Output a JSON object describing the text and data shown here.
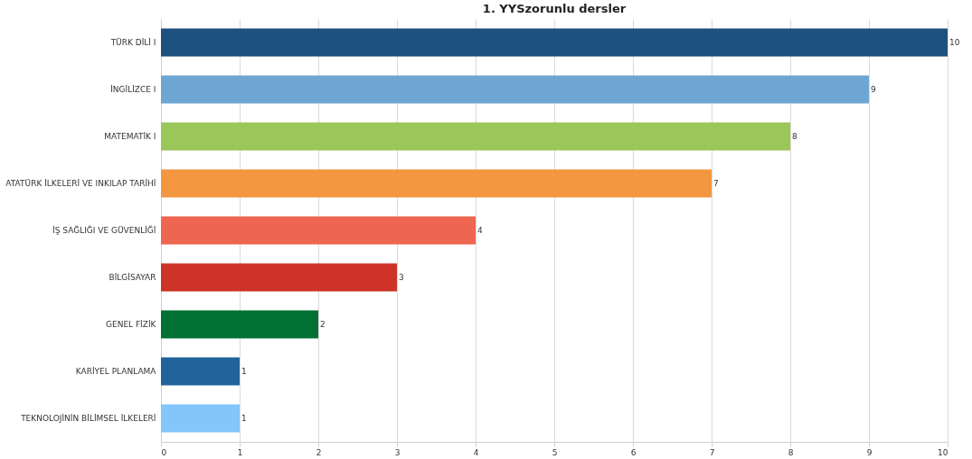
{
  "chart_data": {
    "type": "bar",
    "orientation": "horizontal",
    "title": "1. YYSzorunlu dersler",
    "categories": [
      "TÜRK DİLİ I",
      "İNGİLİZCE I",
      "MATEMATİK I",
      "ATATÜRK İLKELERİ VE INKILAP TARİHİ",
      "İŞ SAĞLIĞI VE GÜVENLİĞİ",
      "BİLGİSAYAR",
      "GENEL FİZİK",
      "KARİYEL PLANLAMA",
      "TEKNOLOJİNİN BİLİMSEL İLKELERİ"
    ],
    "values": [
      10,
      9,
      8,
      7,
      4,
      3,
      2,
      1,
      1
    ],
    "colors": [
      "#1f5180",
      "#6ea6d3",
      "#9ac65a",
      "#f39640",
      "#ee6550",
      "#cd3427",
      "#007132",
      "#22639b",
      "#84c5fa"
    ],
    "xlim": [
      0,
      10
    ],
    "xticks": [
      0,
      1,
      2,
      3,
      4,
      5,
      6,
      7,
      8,
      9,
      10
    ],
    "grid": "x",
    "data_labels": true
  }
}
